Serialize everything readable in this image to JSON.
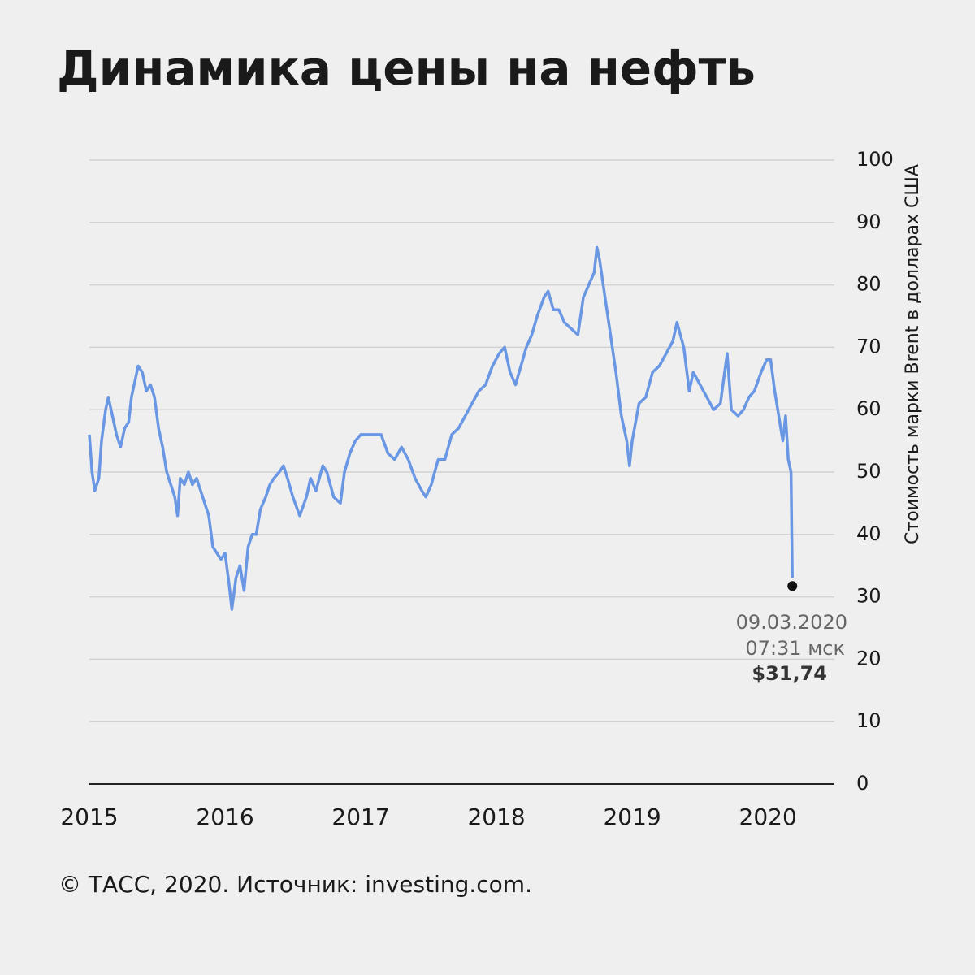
{
  "chart_data": {
    "type": "line",
    "title": "Динамика цены на нефть",
    "y_axis_label": "Стоимость марки Brent в долларах США",
    "source": "© ТАСС, 2020. Источник: investing.com.",
    "color": "#6a97e4",
    "xlim": [
      2015,
      2020.49
    ],
    "xticks": [
      2015,
      2016,
      2017,
      2018,
      2019,
      2020
    ],
    "ylim": [
      0,
      100
    ],
    "yticks": [
      0,
      10,
      20,
      30,
      40,
      50,
      60,
      70,
      80,
      90,
      100
    ],
    "grid": true,
    "x": [
      2015.0,
      2015.02,
      2015.04,
      2015.07,
      2015.09,
      2015.12,
      2015.14,
      2015.17,
      2015.2,
      2015.23,
      2015.26,
      2015.29,
      2015.31,
      2015.34,
      2015.36,
      2015.39,
      2015.42,
      2015.45,
      2015.48,
      2015.51,
      2015.54,
      2015.57,
      2015.6,
      2015.63,
      2015.65,
      2015.67,
      2015.7,
      2015.73,
      2015.76,
      2015.79,
      2015.82,
      2015.85,
      2015.88,
      2015.91,
      2015.94,
      2015.97,
      2016.0,
      2016.03,
      2016.05,
      2016.08,
      2016.11,
      2016.14,
      2016.17,
      2016.2,
      2016.23,
      2016.26,
      2016.3,
      2016.33,
      2016.36,
      2016.4,
      2016.43,
      2016.46,
      2016.5,
      2016.55,
      2016.6,
      2016.63,
      2016.67,
      2016.72,
      2016.75,
      2016.8,
      2016.85,
      2016.88,
      2016.92,
      2016.96,
      2017.0,
      2017.1,
      2017.15,
      2017.2,
      2017.25,
      2017.3,
      2017.35,
      2017.4,
      2017.45,
      2017.48,
      2017.52,
      2017.57,
      2017.62,
      2017.67,
      2017.72,
      2017.77,
      2017.82,
      2017.87,
      2017.92,
      2017.97,
      2018.02,
      2018.06,
      2018.1,
      2018.14,
      2018.18,
      2018.22,
      2018.26,
      2018.3,
      2018.35,
      2018.38,
      2018.42,
      2018.46,
      2018.5,
      2018.55,
      2018.6,
      2018.64,
      2018.68,
      2018.72,
      2018.74,
      2018.76,
      2018.8,
      2018.84,
      2018.88,
      2018.92,
      2018.96,
      2018.98,
      2019.0,
      2019.05,
      2019.1,
      2019.15,
      2019.2,
      2019.25,
      2019.3,
      2019.33,
      2019.38,
      2019.42,
      2019.45,
      2019.5,
      2019.55,
      2019.6,
      2019.65,
      2019.7,
      2019.73,
      2019.78,
      2019.82,
      2019.86,
      2019.9,
      2019.95,
      2019.99,
      2020.02,
      2020.05,
      2020.08,
      2020.11,
      2020.13,
      2020.15,
      2020.17,
      2020.18
    ],
    "values": [
      56,
      50,
      47,
      49,
      55,
      60,
      62,
      59,
      56,
      54,
      57,
      58,
      62,
      65,
      67,
      66,
      63,
      64,
      62,
      57,
      54,
      50,
      48,
      46,
      43,
      49,
      48,
      50,
      48,
      49,
      47,
      45,
      43,
      38,
      37,
      36,
      37,
      32,
      28,
      33,
      35,
      31,
      38,
      40,
      40,
      44,
      46,
      48,
      49,
      50,
      51,
      49,
      46,
      43,
      46,
      49,
      47,
      51,
      50,
      46,
      45,
      50,
      53,
      55,
      56,
      56,
      56,
      53,
      52,
      54,
      52,
      49,
      47,
      46,
      48,
      52,
      52,
      56,
      57,
      59,
      61,
      63,
      64,
      67,
      69,
      70,
      66,
      64,
      67,
      70,
      72,
      75,
      78,
      79,
      76,
      76,
      74,
      73,
      72,
      78,
      80,
      82,
      86,
      84,
      78,
      72,
      66,
      59,
      55,
      51,
      55,
      61,
      62,
      66,
      67,
      69,
      71,
      74,
      70,
      63,
      66,
      64,
      62,
      60,
      61,
      69,
      60,
      59,
      60,
      62,
      63,
      66,
      68,
      68,
      63,
      59,
      55,
      59,
      52,
      50,
      33
    ],
    "annotation": {
      "x": 2020.18,
      "y": 31.74,
      "date": "09.03.2020",
      "time": "07:31 мск",
      "value_label": "$31,74"
    }
  }
}
